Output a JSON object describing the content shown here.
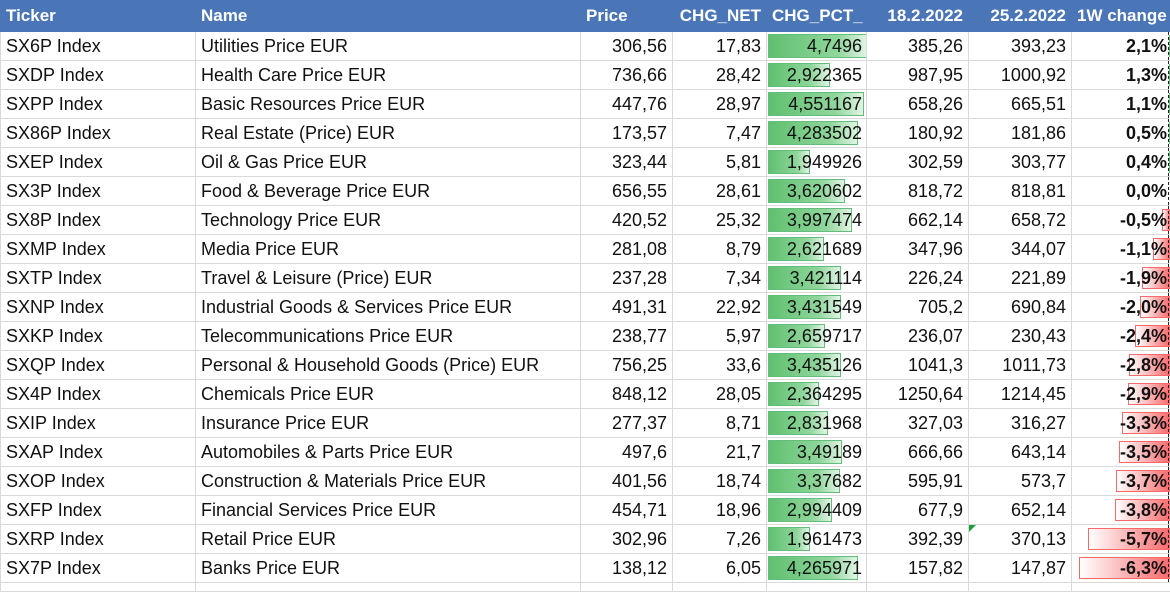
{
  "headers": [
    "Ticker",
    "Name",
    "Price",
    "CHG_NET",
    "CHG_PCT_",
    "18.2.2022",
    "25.2.2022",
    "1W change"
  ],
  "colors": {
    "header_bg": "#4a76b8",
    "header_text": "#ffffff",
    "positive_bar": "#63be7b",
    "negative_bar": "#f8696b",
    "grid": "#d9d9d9"
  },
  "rows": [
    {
      "ticker": "SX6P Index",
      "name": "Utilities Price EUR",
      "price": "306,56",
      "chg_net": "17,83",
      "chg_pct": "4,7496",
      "chg_pct_num": 4.7496,
      "d1": "385,26",
      "d2": "393,23",
      "change": "2,1%",
      "change_num": 2.1
    },
    {
      "ticker": "SXDP Index",
      "name": "Health Care Price EUR",
      "price": "736,66",
      "chg_net": "28,42",
      "chg_pct": "2,922365",
      "chg_pct_num": 2.922365,
      "d1": "987,95",
      "d2": "1000,92",
      "change": "1,3%",
      "change_num": 1.3
    },
    {
      "ticker": "SXPP Index",
      "name": "Basic Resources Price EUR",
      "price": "447,76",
      "chg_net": "28,97",
      "chg_pct": "4,551167",
      "chg_pct_num": 4.551167,
      "d1": "658,26",
      "d2": "665,51",
      "change": "1,1%",
      "change_num": 1.1
    },
    {
      "ticker": "SX86P Index",
      "name": "Real Estate (Price) EUR",
      "price": "173,57",
      "chg_net": "7,47",
      "chg_pct": "4,283502",
      "chg_pct_num": 4.283502,
      "d1": "180,92",
      "d2": "181,86",
      "change": "0,5%",
      "change_num": 0.5
    },
    {
      "ticker": "SXEP Index",
      "name": "Oil & Gas Price EUR",
      "price": "323,44",
      "chg_net": "5,81",
      "chg_pct": "1,949926",
      "chg_pct_num": 1.949926,
      "d1": "302,59",
      "d2": "303,77",
      "change": "0,4%",
      "change_num": 0.4
    },
    {
      "ticker": "SX3P Index",
      "name": "Food & Beverage Price EUR",
      "price": "656,55",
      "chg_net": "28,61",
      "chg_pct": "3,620602",
      "chg_pct_num": 3.620602,
      "d1": "818,72",
      "d2": "818,81",
      "change": "0,0%",
      "change_num": 0.0
    },
    {
      "ticker": "SX8P Index",
      "name": "Technology Price EUR",
      "price": "420,52",
      "chg_net": "25,32",
      "chg_pct": "3,997474",
      "chg_pct_num": 3.997474,
      "d1": "662,14",
      "d2": "658,72",
      "change": "-0,5%",
      "change_num": -0.5
    },
    {
      "ticker": "SXMP Index",
      "name": "Media Price EUR",
      "price": "281,08",
      "chg_net": "8,79",
      "chg_pct": "2,621689",
      "chg_pct_num": 2.621689,
      "d1": "347,96",
      "d2": "344,07",
      "change": "-1,1%",
      "change_num": -1.1
    },
    {
      "ticker": "SXTP Index",
      "name": "Travel & Leisure (Price) EUR",
      "price": "237,28",
      "chg_net": "7,34",
      "chg_pct": "3,421114",
      "chg_pct_num": 3.421114,
      "d1": "226,24",
      "d2": "221,89",
      "change": "-1,9%",
      "change_num": -1.9
    },
    {
      "ticker": "SXNP Index",
      "name": "Industrial Goods & Services Price EUR",
      "price": "491,31",
      "chg_net": "22,92",
      "chg_pct": "3,431549",
      "chg_pct_num": 3.431549,
      "d1": "705,2",
      "d2": "690,84",
      "change": "-2,0%",
      "change_num": -2.0
    },
    {
      "ticker": "SXKP Index",
      "name": "Telecommunications Price EUR",
      "price": "238,77",
      "chg_net": "5,97",
      "chg_pct": "2,659717",
      "chg_pct_num": 2.659717,
      "d1": "236,07",
      "d2": "230,43",
      "change": "-2,4%",
      "change_num": -2.4
    },
    {
      "ticker": "SXQP Index",
      "name": "Personal & Household Goods (Price) EUR",
      "price": "756,25",
      "chg_net": "33,6",
      "chg_pct": "3,435126",
      "chg_pct_num": 3.435126,
      "d1": "1041,3",
      "d2": "1011,73",
      "change": "-2,8%",
      "change_num": -2.8
    },
    {
      "ticker": "SX4P Index",
      "name": "Chemicals Price EUR",
      "price": "848,12",
      "chg_net": "28,05",
      "chg_pct": "2,364295",
      "chg_pct_num": 2.364295,
      "d1": "1250,64",
      "d2": "1214,45",
      "change": "-2,9%",
      "change_num": -2.9
    },
    {
      "ticker": "SXIP Index",
      "name": "Insurance Price EUR",
      "price": "277,37",
      "chg_net": "8,71",
      "chg_pct": "2,831968",
      "chg_pct_num": 2.831968,
      "d1": "327,03",
      "d2": "316,27",
      "change": "-3,3%",
      "change_num": -3.3
    },
    {
      "ticker": "SXAP Index",
      "name": "Automobiles & Parts Price EUR",
      "price": "497,6",
      "chg_net": "21,7",
      "chg_pct": "3,49189",
      "chg_pct_num": 3.49189,
      "d1": "666,66",
      "d2": "643,14",
      "change": "-3,5%",
      "change_num": -3.5
    },
    {
      "ticker": "SXOP Index",
      "name": "Construction & Materials Price EUR",
      "price": "401,56",
      "chg_net": "18,74",
      "chg_pct": "3,37682",
      "chg_pct_num": 3.37682,
      "d1": "595,91",
      "d2": "573,7",
      "change": "-3,7%",
      "change_num": -3.7
    },
    {
      "ticker": "SXFP Index",
      "name": "Financial Services Price EUR",
      "price": "454,71",
      "chg_net": "18,96",
      "chg_pct": "2,994409",
      "chg_pct_num": 2.994409,
      "d1": "677,9",
      "d2": "652,14",
      "change": "-3,8%",
      "change_num": -3.8
    },
    {
      "ticker": "SXRP Index",
      "name": "Retail Price EUR",
      "price": "302,96",
      "chg_net": "7,26",
      "chg_pct": "1,961473",
      "chg_pct_num": 1.961473,
      "d1": "392,39",
      "d2": "370,13",
      "change": "-5,7%",
      "change_num": -5.7,
      "flag": true
    },
    {
      "ticker": "SX7P Index",
      "name": "Banks Price EUR",
      "price": "138,12",
      "chg_net": "6,05",
      "chg_pct": "4,265971",
      "chg_pct_num": 4.265971,
      "d1": "157,82",
      "d2": "147,87",
      "change": "-6,3%",
      "change_num": -6.3
    }
  ]
}
